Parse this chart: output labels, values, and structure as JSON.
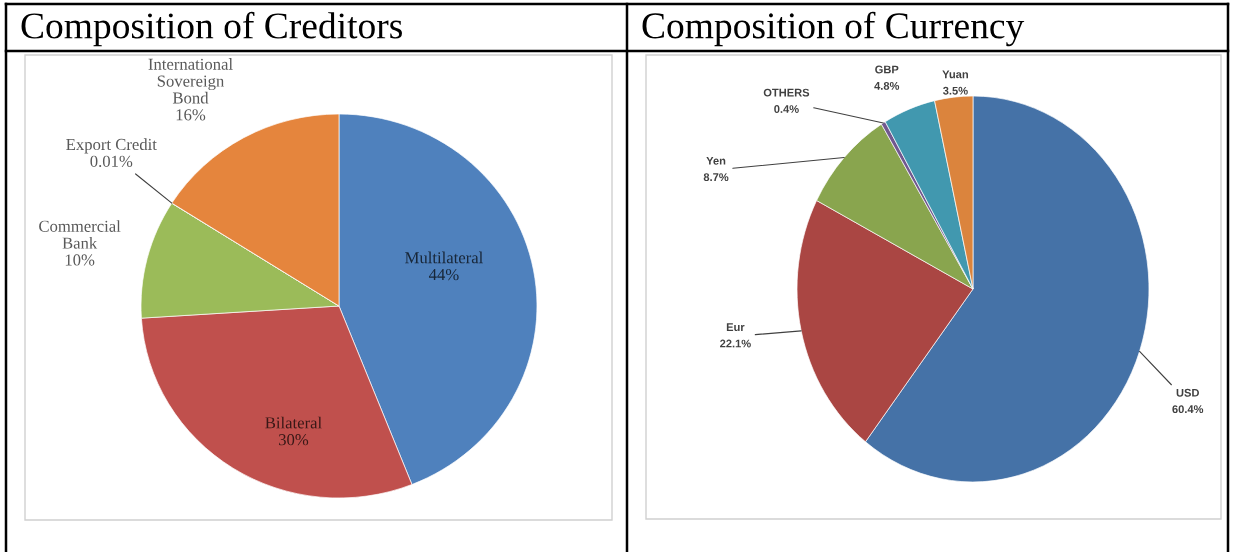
{
  "chart_data": [
    {
      "type": "pie",
      "title": "Composition of Creditors",
      "categories": [
        "Multilateral",
        "Bilateral",
        "Commercial Bank",
        "Export Credit",
        "International Sovereign Bond"
      ],
      "values": [
        44,
        30,
        10,
        0.01,
        16
      ],
      "value_labels": [
        "44%",
        "30%",
        "10%",
        "0.01%",
        "16%"
      ],
      "colors": [
        "#4f81bd",
        "#c0504d",
        "#9bbb59",
        "#8064a2",
        "#e5853d"
      ]
    },
    {
      "type": "pie",
      "title": "Composition of Currency",
      "categories": [
        "USD",
        "Eur",
        "Yen",
        "OTHERS",
        "GBP",
        "Yuan"
      ],
      "values": [
        60.4,
        22.1,
        8.7,
        0.4,
        4.8,
        3.5
      ],
      "value_labels": [
        "60.4%",
        "22.1%",
        "8.7%",
        "0.4%",
        "4.8%",
        "3.5%"
      ],
      "colors": [
        "#4572a7",
        "#aa4643",
        "#89a54e",
        "#71588f",
        "#4198af",
        "#db843d"
      ]
    }
  ]
}
